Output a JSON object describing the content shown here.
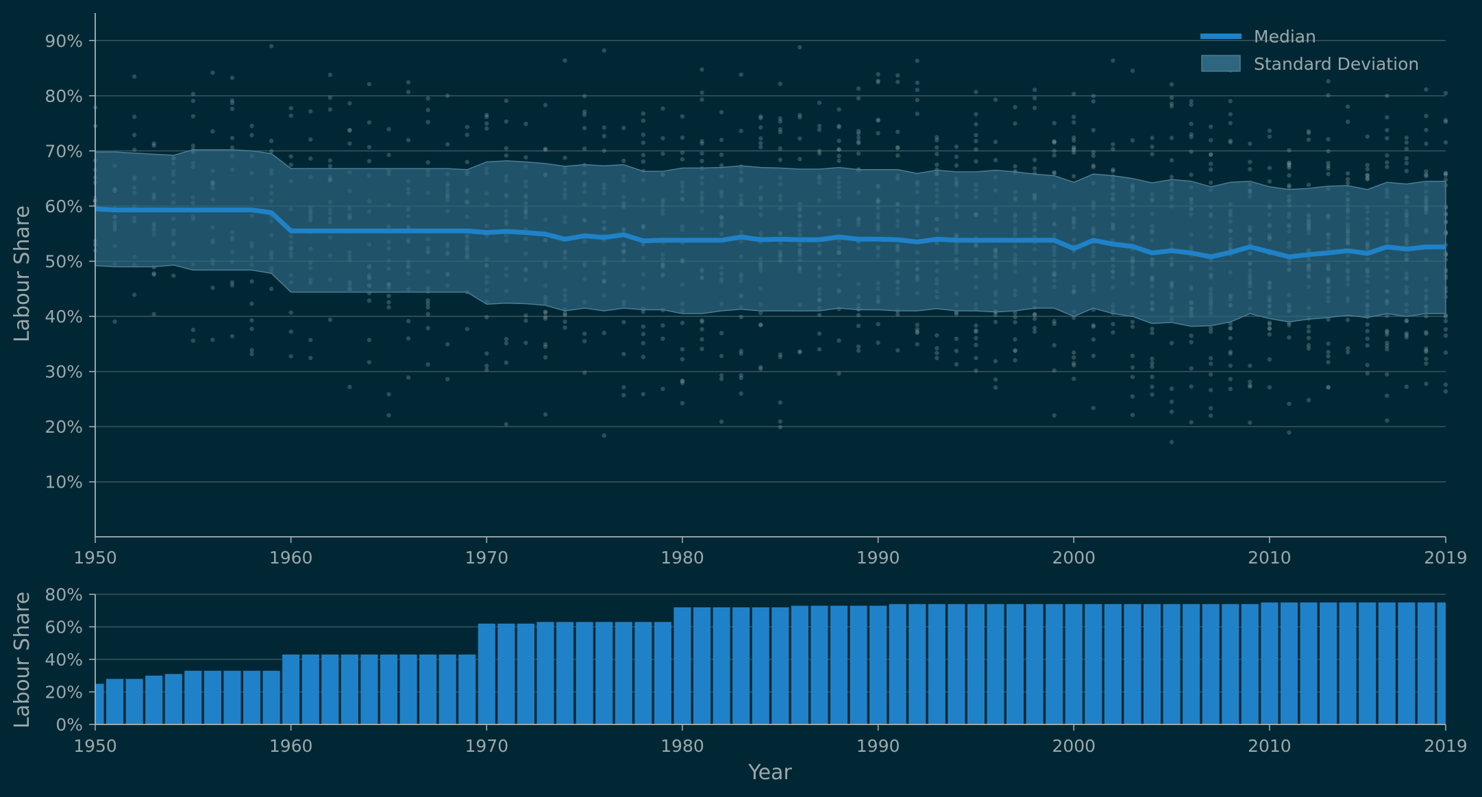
{
  "chart_data": [
    {
      "type": "line",
      "xlabel": "",
      "ylabel": "Labour Share",
      "xlim": [
        1950,
        2019
      ],
      "ylim": [
        5,
        95
      ],
      "x_ticks": [
        "1950",
        "1960",
        "1970",
        "1980",
        "1990",
        "2000",
        "2010",
        "2019"
      ],
      "y_ticks": [
        "10%",
        "20%",
        "30%",
        "40%",
        "50%",
        "60%",
        "70%",
        "80%",
        "90%"
      ],
      "grid": true,
      "legend_position": "top-right",
      "legend": {
        "median": "Median",
        "std": "Standard Deviation"
      },
      "colors": {
        "median": "#1f82c8",
        "band": "#2e6680",
        "points": "#7f9aa3",
        "grid": "#3b5560",
        "axis": "#a9b5b9",
        "text": "#9aa8ad"
      },
      "series": [
        {
          "name": "Median",
          "x": [
            1950,
            1951,
            1952,
            1953,
            1954,
            1955,
            1956,
            1957,
            1958,
            1959,
            1960,
            1961,
            1962,
            1963,
            1964,
            1965,
            1966,
            1967,
            1968,
            1969,
            1970,
            1971,
            1972,
            1973,
            1974,
            1975,
            1976,
            1977,
            1978,
            1979,
            1980,
            1981,
            1982,
            1983,
            1984,
            1985,
            1986,
            1987,
            1988,
            1989,
            1990,
            1991,
            1992,
            1993,
            1994,
            1995,
            1996,
            1997,
            1998,
            1999,
            2000,
            2001,
            2002,
            2003,
            2004,
            2005,
            2006,
            2007,
            2008,
            2009,
            2010,
            2011,
            2012,
            2013,
            2014,
            2015,
            2016,
            2017,
            2018,
            2019
          ],
          "values": [
            59.5,
            59.3,
            59.3,
            59.3,
            59.3,
            59.3,
            59.3,
            59.3,
            59.3,
            58.8,
            55.5,
            55.5,
            55.5,
            55.5,
            55.5,
            55.5,
            55.5,
            55.5,
            55.5,
            55.5,
            55.2,
            55.4,
            55.2,
            54.9,
            54.0,
            54.6,
            54.3,
            54.8,
            53.7,
            53.8,
            53.8,
            53.8,
            53.8,
            54.4,
            53.9,
            54.0,
            53.9,
            53.9,
            54.4,
            54.0,
            54.0,
            53.9,
            53.5,
            54.0,
            53.8,
            53.8,
            53.8,
            53.8,
            53.8,
            53.8,
            52.3,
            53.8,
            53.1,
            52.7,
            51.5,
            51.9,
            51.5,
            50.8,
            51.6,
            52.6,
            51.7,
            50.8,
            51.2,
            51.5,
            51.9,
            51.4,
            52.6,
            52.2,
            52.6,
            52.6
          ]
        },
        {
          "name": "Standard Deviation",
          "x": [
            1950,
            1951,
            1952,
            1953,
            1954,
            1955,
            1956,
            1957,
            1958,
            1959,
            1960,
            1961,
            1962,
            1963,
            1964,
            1965,
            1966,
            1967,
            1968,
            1969,
            1970,
            1971,
            1972,
            1973,
            1974,
            1975,
            1976,
            1977,
            1978,
            1979,
            1980,
            1981,
            1982,
            1983,
            1984,
            1985,
            1986,
            1987,
            1988,
            1989,
            1990,
            1991,
            1992,
            1993,
            1994,
            1995,
            1996,
            1997,
            1998,
            1999,
            2000,
            2001,
            2002,
            2003,
            2004,
            2005,
            2006,
            2007,
            2008,
            2009,
            2010,
            2011,
            2012,
            2013,
            2014,
            2015,
            2016,
            2017,
            2018,
            2019
          ],
          "upper": [
            69.8,
            69.8,
            69.6,
            69.4,
            69.2,
            70.2,
            70.2,
            70.2,
            70.0,
            69.5,
            66.8,
            66.8,
            66.8,
            66.8,
            66.8,
            66.8,
            66.8,
            66.8,
            66.8,
            66.6,
            68.0,
            68.2,
            68.0,
            67.7,
            67.2,
            67.5,
            67.3,
            67.5,
            66.3,
            66.3,
            66.9,
            66.9,
            67.0,
            67.3,
            67.0,
            66.9,
            66.7,
            66.7,
            67.0,
            66.6,
            66.6,
            66.6,
            65.9,
            66.5,
            66.2,
            66.2,
            66.5,
            66.2,
            65.8,
            65.5,
            64.3,
            65.8,
            65.5,
            65.0,
            64.2,
            64.8,
            64.5,
            63.5,
            64.3,
            64.5,
            63.5,
            63.0,
            63.2,
            63.6,
            63.7,
            63.0,
            64.3,
            64.0,
            64.5,
            64.5
          ],
          "lower": [
            49.2,
            49.0,
            49.0,
            49.0,
            49.3,
            48.4,
            48.4,
            48.4,
            48.4,
            47.8,
            44.4,
            44.4,
            44.4,
            44.4,
            44.4,
            44.4,
            44.4,
            44.4,
            44.4,
            44.4,
            42.2,
            42.4,
            42.3,
            42.0,
            41.0,
            41.5,
            41.0,
            41.5,
            41.2,
            41.2,
            40.5,
            40.5,
            41.0,
            41.3,
            41.0,
            41.0,
            41.0,
            41.0,
            41.5,
            41.2,
            41.2,
            41.0,
            41.0,
            41.4,
            41.0,
            41.0,
            40.8,
            41.0,
            41.5,
            41.5,
            40.0,
            41.5,
            40.5,
            40.0,
            38.7,
            38.9,
            38.2,
            38.3,
            39.0,
            40.5,
            39.6,
            39.0,
            39.5,
            39.8,
            40.2,
            39.8,
            40.5,
            40.0,
            40.5,
            40.5
          ]
        }
      ]
    },
    {
      "type": "bar",
      "xlabel": "Year",
      "ylabel": "Labour Share",
      "xlim": [
        1950,
        2019
      ],
      "ylim": [
        0,
        80
      ],
      "x_ticks": [
        "1950",
        "1960",
        "1970",
        "1980",
        "1990",
        "2000",
        "2010",
        "2019"
      ],
      "y_ticks": [
        "0%",
        "20%",
        "40%",
        "60%",
        "80%"
      ],
      "grid": true,
      "colors": {
        "bar": "#1f82c8"
      },
      "categories": [
        1950,
        1951,
        1952,
        1953,
        1954,
        1955,
        1956,
        1957,
        1958,
        1959,
        1960,
        1961,
        1962,
        1963,
        1964,
        1965,
        1966,
        1967,
        1968,
        1969,
        1970,
        1971,
        1972,
        1973,
        1974,
        1975,
        1976,
        1977,
        1978,
        1979,
        1980,
        1981,
        1982,
        1983,
        1984,
        1985,
        1986,
        1987,
        1988,
        1989,
        1990,
        1991,
        1992,
        1993,
        1994,
        1995,
        1996,
        1997,
        1998,
        1999,
        2000,
        2001,
        2002,
        2003,
        2004,
        2005,
        2006,
        2007,
        2008,
        2009,
        2010,
        2011,
        2012,
        2013,
        2014,
        2015,
        2016,
        2017,
        2018,
        2019
      ],
      "values": [
        25,
        28,
        28,
        30,
        31,
        33,
        33,
        33,
        33,
        33,
        43,
        43,
        43,
        43,
        43,
        43,
        43,
        43,
        43,
        43,
        62,
        62,
        62,
        63,
        63,
        63,
        63,
        63,
        63,
        63,
        72,
        72,
        72,
        72,
        72,
        72,
        73,
        73,
        73,
        73,
        73,
        74,
        74,
        74,
        74,
        74,
        74,
        74,
        74,
        74,
        74,
        74,
        74,
        74,
        74,
        74,
        74,
        74,
        74,
        74,
        75,
        75,
        75,
        75,
        75,
        75,
        75,
        75,
        75,
        75
      ]
    }
  ]
}
